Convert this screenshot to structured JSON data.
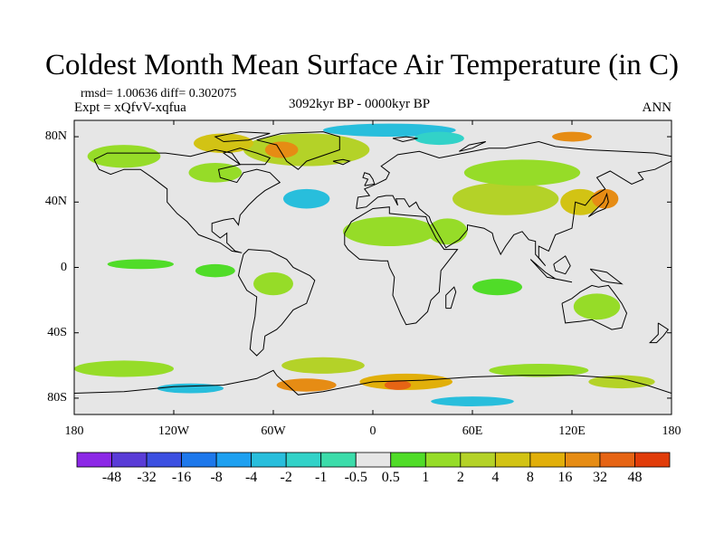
{
  "title": "Coldest Month Mean Surface Air Temperature (in C)",
  "stats_line": "rmsd= 1.00636 diff= 0.302075",
  "experiment_line": "Expt = xQfvV-xqfua",
  "period_line": "3092kyr BP - 0000kyr BP",
  "season_label": "ANN",
  "map": {
    "projection": "cylindrical-equidistant",
    "lon_range": [
      -180,
      180
    ],
    "lat_range": [
      -90,
      90
    ],
    "background_color": "#e6e6e6",
    "coastline_color": "#000000",
    "y_tick_labels": [
      {
        "lat": 80,
        "label": "80N"
      },
      {
        "lat": 40,
        "label": "40N"
      },
      {
        "lat": 0,
        "label": "0"
      },
      {
        "lat": -40,
        "label": "40S"
      },
      {
        "lat": -80,
        "label": "80S"
      }
    ],
    "x_tick_labels": [
      {
        "lon": -180,
        "label": "180"
      },
      {
        "lon": -120,
        "label": "120W"
      },
      {
        "lon": -60,
        "label": "60W"
      },
      {
        "lon": 0,
        "label": "0"
      },
      {
        "lon": 60,
        "label": "60E"
      },
      {
        "lon": 120,
        "label": "120E"
      },
      {
        "lon": 180,
        "label": "180"
      }
    ]
  },
  "colorbar": {
    "colors": [
      "#8c28e6",
      "#5a3cd7",
      "#3c50e1",
      "#1e78eb",
      "#1ea0f0",
      "#28bedc",
      "#32d2c8",
      "#3cdcaa",
      "#e6e6e6",
      "#50dc28",
      "#96dc28",
      "#b4d228",
      "#d2c314",
      "#e1af0a",
      "#e68c14",
      "#e66414",
      "#e13c0a"
    ],
    "labels": [
      "-48",
      "-32",
      "-16",
      "-8",
      "-4",
      "-2",
      "-1",
      "-0.5",
      "0.5",
      "1",
      "2",
      "4",
      "8",
      "16",
      "32",
      "48"
    ]
  },
  "anomaly_patches": [
    {
      "region": "Arctic Canada / Greenland",
      "lon": -40,
      "lat": 72,
      "rx": 38,
      "ry": 10,
      "color": "#b4d228"
    },
    {
      "region": "Baffin Bay",
      "lon": -55,
      "lat": 72,
      "rx": 10,
      "ry": 5,
      "color": "#e68c14"
    },
    {
      "region": "Canadian Archipelago",
      "lon": -90,
      "lat": 76,
      "rx": 18,
      "ry": 6,
      "color": "#d2c314"
    },
    {
      "region": "Alaska",
      "lon": -150,
      "lat": 68,
      "rx": 22,
      "ry": 7,
      "color": "#96dc28"
    },
    {
      "region": "Arctic Ocean",
      "lon": 10,
      "lat": 84,
      "rx": 40,
      "ry": 4,
      "color": "#28bedc"
    },
    {
      "region": "Barents Sea",
      "lon": 40,
      "lat": 79,
      "rx": 15,
      "ry": 4,
      "color": "#32d2c8"
    },
    {
      "region": "Laptev Sea",
      "lon": 120,
      "lat": 80,
      "rx": 12,
      "ry": 3,
      "color": "#e68c14"
    },
    {
      "region": "North Atlantic",
      "lon": -40,
      "lat": 42,
      "rx": 14,
      "ry": 6,
      "color": "#28bedc"
    },
    {
      "region": "Canada",
      "lon": -95,
      "lat": 58,
      "rx": 16,
      "ry": 6,
      "color": "#96dc28"
    },
    {
      "region": "Sahara",
      "lon": 10,
      "lat": 22,
      "rx": 28,
      "ry": 9,
      "color": "#96dc28"
    },
    {
      "region": "Arabia",
      "lon": 45,
      "lat": 22,
      "rx": 12,
      "ry": 8,
      "color": "#96dc28"
    },
    {
      "region": "Central Asia",
      "lon": 80,
      "lat": 42,
      "rx": 32,
      "ry": 10,
      "color": "#b4d228"
    },
    {
      "region": "Siberia",
      "lon": 90,
      "lat": 58,
      "rx": 35,
      "ry": 8,
      "color": "#96dc28"
    },
    {
      "region": "East Asia",
      "lon": 125,
      "lat": 40,
      "rx": 12,
      "ry": 8,
      "color": "#d2c314"
    },
    {
      "region": "Japan",
      "lon": 140,
      "lat": 42,
      "rx": 8,
      "ry": 6,
      "color": "#e68c14"
    },
    {
      "region": "Tropical Pacific",
      "lon": -140,
      "lat": 2,
      "rx": 20,
      "ry": 3,
      "color": "#50dc28"
    },
    {
      "region": "Tropical Pacific east",
      "lon": -95,
      "lat": -2,
      "rx": 12,
      "ry": 4,
      "color": "#50dc28"
    },
    {
      "region": "Indian Ocean",
      "lon": 75,
      "lat": -12,
      "rx": 15,
      "ry": 5,
      "color": "#50dc28"
    },
    {
      "region": "Australia",
      "lon": 135,
      "lat": -24,
      "rx": 14,
      "ry": 8,
      "color": "#96dc28"
    },
    {
      "region": "South America",
      "lon": -60,
      "lat": -10,
      "rx": 12,
      "ry": 7,
      "color": "#96dc28"
    },
    {
      "region": "Southern Ocean Pacific",
      "lon": -150,
      "lat": -62,
      "rx": 30,
      "ry": 5,
      "color": "#96dc28"
    },
    {
      "region": "Southern Ocean Atlantic",
      "lon": -30,
      "lat": -60,
      "rx": 25,
      "ry": 5,
      "color": "#b4d228"
    },
    {
      "region": "Weddell Sea",
      "lon": -40,
      "lat": -72,
      "rx": 18,
      "ry": 4,
      "color": "#e68c14"
    },
    {
      "region": "East Antarctica",
      "lon": 20,
      "lat": -70,
      "rx": 28,
      "ry": 5,
      "color": "#e1af0a"
    },
    {
      "region": "East Antarctica peak",
      "lon": 15,
      "lat": -72,
      "rx": 8,
      "ry": 3,
      "color": "#e66414"
    },
    {
      "region": "Southern Ocean Indian",
      "lon": 100,
      "lat": -63,
      "rx": 30,
      "ry": 4,
      "color": "#96dc28"
    },
    {
      "region": "Ross Sea",
      "lon": 150,
      "lat": -70,
      "rx": 20,
      "ry": 4,
      "color": "#b4d228"
    },
    {
      "region": "Amundsen Sea",
      "lon": -110,
      "lat": -74,
      "rx": 20,
      "ry": 3,
      "color": "#28bedc"
    },
    {
      "region": "Antarctic interior",
      "lon": 60,
      "lat": -82,
      "rx": 25,
      "ry": 3,
      "color": "#28bedc"
    }
  ]
}
